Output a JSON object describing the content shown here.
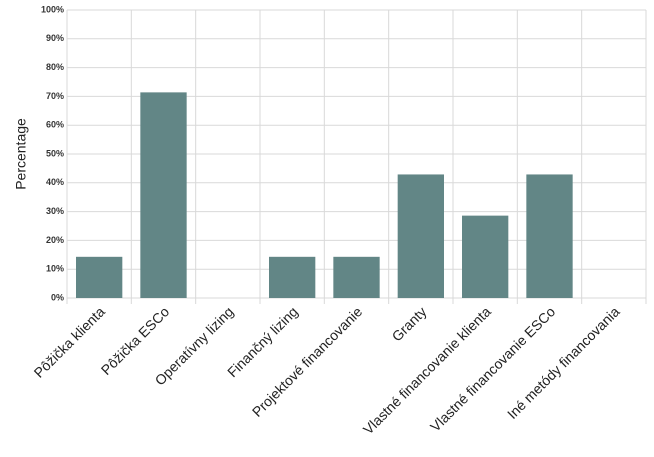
{
  "chart_data": {
    "type": "bar",
    "y_label": "Percentage",
    "categories": [
      "Pôžička klienta",
      "Pôžička ESCo",
      "Operatívny lizing",
      "Finančný lizing",
      "Projektové financovanie",
      "Granty",
      "Vlastné financovanie klienta",
      "Vlastné financovanie ESCo",
      "Iné metódy financovania"
    ],
    "values": [
      14.3,
      71.4,
      0,
      14.3,
      14.3,
      42.9,
      28.6,
      42.9,
      0
    ],
    "color": "#628686",
    "ylim": [
      0,
      100
    ],
    "yticks": [
      {
        "value": 0,
        "label": "0%"
      },
      {
        "value": 10,
        "label": "10%"
      },
      {
        "value": 20,
        "label": "20%"
      },
      {
        "value": 30,
        "label": "30%"
      },
      {
        "value": 40,
        "label": "40%"
      },
      {
        "value": 50,
        "label": "50%"
      },
      {
        "value": 60,
        "label": "60%"
      },
      {
        "value": 70,
        "label": "70%"
      },
      {
        "value": 80,
        "label": "80%"
      },
      {
        "value": 90,
        "label": "90%"
      },
      {
        "value": 100,
        "label": "100%"
      }
    ],
    "grid": true
  }
}
